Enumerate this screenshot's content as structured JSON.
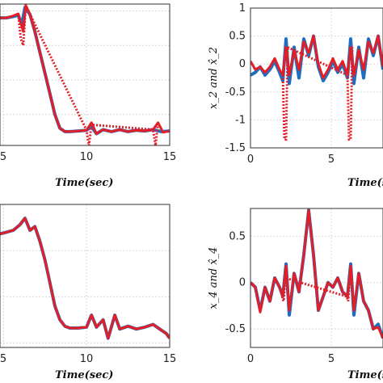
{
  "chart_data": [
    {
      "type": "line",
      "xlabel": "Time(sec)",
      "ylabel": "",
      "xlim": [
        4.8,
        15
      ],
      "ylim": [
        -1.45,
        0.6
      ],
      "xticks": [
        "5",
        "10",
        "15"
      ],
      "yticks": [],
      "grid": true,
      "series": [
        {
          "color": "#1f6fc0",
          "style": "solid",
          "x": [
            4.8,
            5.2,
            5.6,
            5.9,
            6.1,
            6.3,
            6.6,
            6.9,
            7.2,
            7.5,
            7.8,
            8.1,
            8.4,
            8.7,
            9.0,
            9.5,
            10.0,
            10.3,
            10.6,
            11.0,
            11.5,
            12.0,
            12.5,
            13.0,
            13.5,
            14.0,
            14.5,
            15.0
          ],
          "y": [
            0.4,
            0.4,
            0.42,
            0.44,
            0.3,
            0.55,
            0.45,
            0.2,
            -0.1,
            -0.4,
            -0.7,
            -1.0,
            -1.2,
            -1.25,
            -1.25,
            -1.24,
            -1.23,
            -1.18,
            -1.28,
            -1.22,
            -1.25,
            -1.22,
            -1.25,
            -1.23,
            -1.24,
            -1.22,
            -1.25,
            -1.24
          ]
        },
        {
          "color": "#e41e26",
          "style": "solid",
          "x": [
            4.8,
            5.2,
            5.6,
            5.9,
            6.2,
            6.35,
            6.6,
            6.9,
            7.2,
            7.5,
            7.8,
            8.1,
            8.4,
            8.7,
            9.0,
            9.5,
            10.0,
            10.3,
            10.6,
            11.0,
            11.5,
            12.0,
            12.5,
            13.0,
            13.5,
            14.0,
            14.3,
            14.6,
            15.0
          ],
          "y": [
            0.4,
            0.4,
            0.43,
            0.46,
            0.2,
            0.58,
            0.45,
            0.2,
            -0.1,
            -0.4,
            -0.7,
            -1.0,
            -1.2,
            -1.25,
            -1.25,
            -1.24,
            -1.23,
            -1.12,
            -1.28,
            -1.22,
            -1.25,
            -1.22,
            -1.25,
            -1.23,
            -1.24,
            -1.22,
            -1.12,
            -1.26,
            -1.24
          ]
        },
        {
          "color": "#e41e26",
          "style": "dotted",
          "x": [
            5.9,
            6.05,
            6.2,
            6.35,
            10.0,
            10.15,
            10.3,
            14.0,
            14.15,
            14.3
          ],
          "y": [
            0.46,
            0.1,
            0.0,
            0.58,
            -1.23,
            -1.45,
            -1.15,
            -1.22,
            -1.45,
            -1.12
          ]
        }
      ]
    },
    {
      "type": "line",
      "xlabel": "Time(s",
      "ylabel": "x_2 and x̂_2",
      "xlim": [
        0,
        8.2
      ],
      "ylim": [
        -1.5,
        1
      ],
      "xticks": [
        "0",
        "5"
      ],
      "yticks": [
        "1",
        "0.5",
        "0",
        "-0.5",
        "-1",
        "-1.5"
      ],
      "grid": true,
      "series": [
        {
          "color": "#1f6fc0",
          "style": "solid",
          "x": [
            0,
            0.3,
            0.6,
            0.9,
            1.2,
            1.5,
            1.8,
            2.0,
            2.2,
            2.4,
            2.7,
            3.0,
            3.3,
            3.6,
            3.9,
            4.2,
            4.5,
            4.8,
            5.1,
            5.4,
            5.7,
            6.0,
            6.2,
            6.4,
            6.7,
            7.0,
            7.3,
            7.6,
            7.9,
            8.2
          ],
          "y": [
            -0.2,
            -0.15,
            -0.05,
            -0.2,
            -0.1,
            0.05,
            -0.15,
            -0.3,
            0.45,
            -0.35,
            0.3,
            -0.25,
            0.45,
            0.15,
            0.5,
            -0.05,
            -0.3,
            -0.15,
            0.05,
            -0.15,
            0.0,
            -0.25,
            0.45,
            -0.35,
            0.3,
            -0.25,
            0.45,
            0.15,
            0.5,
            -0.1
          ]
        },
        {
          "color": "#e41e26",
          "style": "solid",
          "x": [
            0,
            0.3,
            0.6,
            0.9,
            1.2,
            1.5,
            1.8,
            2.0,
            2.2,
            2.4,
            2.7,
            3.0,
            3.3,
            3.6,
            3.9,
            4.2,
            4.5,
            4.8,
            5.1,
            5.4,
            5.7,
            6.0,
            6.2,
            6.4,
            6.7,
            7.0,
            7.3,
            7.6,
            7.9,
            8.2
          ],
          "y": [
            0.05,
            -0.1,
            -0.05,
            -0.15,
            -0.05,
            0.1,
            -0.1,
            -0.2,
            0.3,
            -0.2,
            0.25,
            -0.1,
            0.4,
            0.2,
            0.5,
            0.0,
            -0.25,
            -0.1,
            0.1,
            -0.1,
            0.05,
            -0.2,
            0.3,
            -0.2,
            0.25,
            -0.1,
            0.4,
            0.2,
            0.5,
            -0.05
          ]
        },
        {
          "color": "#e41e26",
          "style": "dotted",
          "x": [
            2.0,
            2.1,
            2.2,
            2.3,
            6.0,
            6.1,
            6.2,
            6.3
          ],
          "y": [
            -0.2,
            -1.35,
            -1.35,
            0.3,
            -0.2,
            -1.35,
            -1.35,
            0.3
          ]
        }
      ]
    },
    {
      "type": "line",
      "xlabel": "Time(sec)",
      "ylabel": "",
      "xlim": [
        4.8,
        15
      ],
      "ylim": [
        -0.55,
        1.0
      ],
      "xticks": [
        "5",
        "10",
        "15"
      ],
      "yticks": [],
      "grid": true,
      "series": [
        {
          "color": "#1f6fc0",
          "style": "solid",
          "x": [
            4.8,
            5.2,
            5.6,
            6.0,
            6.3,
            6.6,
            6.9,
            7.2,
            7.5,
            7.8,
            8.1,
            8.4,
            8.7,
            9.0,
            9.5,
            10.0,
            10.3,
            10.6,
            11.0,
            11.3,
            11.7,
            12.0,
            12.5,
            13.0,
            13.5,
            14.0,
            14.4,
            14.8,
            15.0
          ],
          "y": [
            0.68,
            0.7,
            0.72,
            0.78,
            0.85,
            0.72,
            0.76,
            0.6,
            0.4,
            0.15,
            -0.1,
            -0.25,
            -0.32,
            -0.34,
            -0.34,
            -0.33,
            -0.2,
            -0.33,
            -0.25,
            -0.45,
            -0.2,
            -0.35,
            -0.32,
            -0.35,
            -0.33,
            -0.3,
            -0.35,
            -0.4,
            -0.45
          ]
        },
        {
          "color": "#e41e26",
          "style": "solid",
          "x": [
            4.8,
            5.2,
            5.6,
            6.0,
            6.3,
            6.6,
            6.9,
            7.2,
            7.5,
            7.8,
            8.1,
            8.4,
            8.7,
            9.0,
            9.5,
            10.0,
            10.3,
            10.6,
            11.0,
            11.3,
            11.7,
            12.0,
            12.5,
            13.0,
            13.5,
            14.0,
            14.4,
            14.8,
            15.0
          ],
          "y": [
            0.68,
            0.7,
            0.72,
            0.78,
            0.85,
            0.72,
            0.76,
            0.6,
            0.4,
            0.15,
            -0.1,
            -0.25,
            -0.32,
            -0.34,
            -0.34,
            -0.33,
            -0.2,
            -0.33,
            -0.25,
            -0.45,
            -0.2,
            -0.35,
            -0.32,
            -0.35,
            -0.33,
            -0.3,
            -0.35,
            -0.4,
            -0.45
          ]
        }
      ]
    },
    {
      "type": "line",
      "xlabel": "Time(s",
      "ylabel": "x_4 and x̂_4",
      "xlim": [
        0,
        8.2
      ],
      "ylim": [
        -0.7,
        0.8
      ],
      "xticks": [
        "0",
        "5"
      ],
      "yticks": [
        "0.5",
        "0",
        "-0.5"
      ],
      "grid": true,
      "series": [
        {
          "color": "#1f6fc0",
          "style": "solid",
          "x": [
            0,
            0.3,
            0.6,
            0.9,
            1.2,
            1.5,
            1.8,
            2.0,
            2.2,
            2.4,
            2.7,
            3.0,
            3.3,
            3.6,
            3.9,
            4.2,
            4.5,
            4.8,
            5.1,
            5.4,
            5.7,
            6.0,
            6.2,
            6.4,
            6.7,
            7.0,
            7.3,
            7.6,
            7.9,
            8.2
          ],
          "y": [
            0.0,
            -0.05,
            -0.3,
            -0.05,
            -0.2,
            0.05,
            -0.05,
            -0.15,
            0.2,
            -0.35,
            0.1,
            -0.1,
            0.3,
            0.78,
            0.3,
            -0.3,
            -0.15,
            0.0,
            -0.05,
            0.05,
            -0.1,
            -0.15,
            0.2,
            -0.35,
            0.1,
            -0.2,
            -0.3,
            -0.5,
            -0.45,
            -0.6
          ]
        },
        {
          "color": "#e41e26",
          "style": "solid",
          "x": [
            0,
            0.3,
            0.6,
            0.9,
            1.2,
            1.5,
            1.8,
            2.0,
            2.2,
            2.4,
            2.7,
            3.0,
            3.3,
            3.6,
            3.9,
            4.2,
            4.5,
            4.8,
            5.1,
            5.4,
            5.7,
            6.0,
            6.2,
            6.4,
            6.7,
            7.0,
            7.3,
            7.6,
            7.9,
            8.2
          ],
          "y": [
            0.0,
            -0.05,
            -0.32,
            -0.05,
            -0.2,
            0.05,
            -0.05,
            -0.15,
            0.18,
            -0.3,
            0.1,
            -0.1,
            0.3,
            0.78,
            0.3,
            -0.3,
            -0.15,
            0.0,
            -0.05,
            0.05,
            -0.1,
            -0.15,
            0.18,
            -0.3,
            0.1,
            -0.2,
            -0.3,
            -0.5,
            -0.48,
            -0.6
          ]
        },
        {
          "color": "#e41e26",
          "style": "dotted",
          "x": [
            1.95,
            2.05,
            2.15,
            5.95,
            6.05,
            6.15
          ],
          "y": [
            -0.15,
            -0.2,
            0.05,
            -0.15,
            -0.2,
            0.05
          ]
        }
      ]
    }
  ]
}
